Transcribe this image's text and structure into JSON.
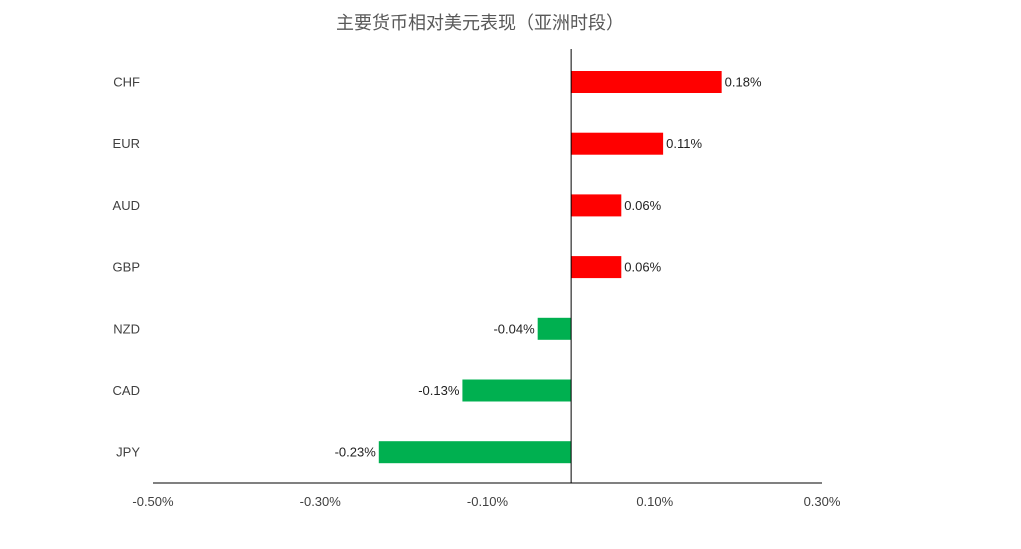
{
  "chart_data": {
    "type": "bar",
    "orientation": "horizontal",
    "title": "主要货币相对美元表现（亚洲时段）",
    "xlabel": "",
    "ylabel": "",
    "categories": [
      "CHF",
      "EUR",
      "AUD",
      "GBP",
      "NZD",
      "CAD",
      "JPY"
    ],
    "values": [
      0.18,
      0.11,
      0.06,
      0.06,
      -0.04,
      -0.13,
      -0.23
    ],
    "data_labels": [
      "0.18%",
      "0.11%",
      "0.06%",
      "0.06%",
      "-0.04%",
      "-0.13%",
      "-0.23%"
    ],
    "xlim": [
      -0.5,
      0.3
    ],
    "x_ticks": [
      -0.5,
      -0.3,
      -0.1,
      0.1,
      0.3
    ],
    "x_tick_labels": [
      "-0.50%",
      "-0.30%",
      "-0.10%",
      "0.10%",
      "0.30%"
    ],
    "grid": false,
    "legend": false,
    "colors": {
      "positive": "#ff0000",
      "negative": "#00b050",
      "axis": "#000000"
    }
  }
}
